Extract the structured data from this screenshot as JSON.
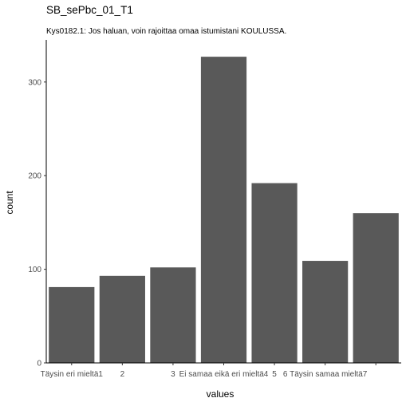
{
  "chart_data": {
    "type": "bar",
    "title": "SB_sePbc_01_T1",
    "subtitle": "Kys0182.1: Jos haluan, voin rajoittaa omaa istumistani KOULUSSA.",
    "xlabel": "values",
    "ylabel": "count",
    "categories": [
      1,
      2,
      3,
      4,
      5,
      6,
      7
    ],
    "values": [
      81,
      93,
      102,
      327,
      192,
      109,
      160
    ],
    "x_tick_labels": [
      "Täysin eri mieltä1",
      "2",
      "3",
      "Ei samaa eikä eri mieltä4",
      "5",
      "6 Täysin samaa mieltä7",
      ""
    ],
    "y_ticks": [
      0,
      100,
      200,
      300
    ],
    "ylim": [
      0,
      345
    ],
    "xlim": [
      0.5,
      7.5
    ],
    "bar_color": "#595959",
    "axis_color": "#000000",
    "tick_text_color": "#4d4d4d",
    "grid": false,
    "legend": "none"
  }
}
